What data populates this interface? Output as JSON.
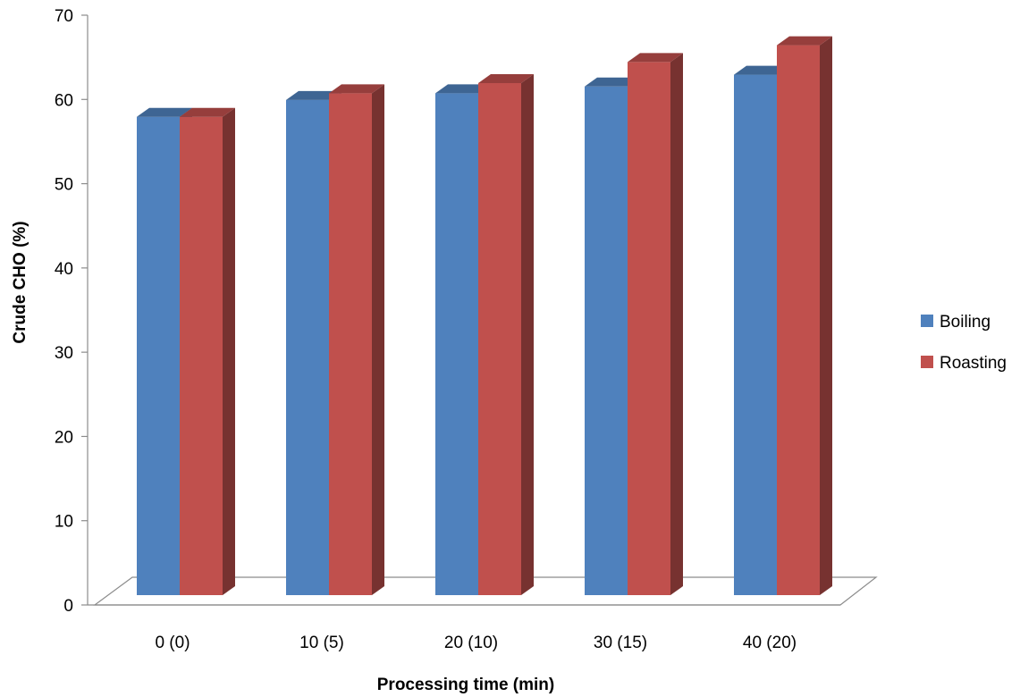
{
  "chart_data": {
    "type": "bar",
    "title": "",
    "xlabel": "Processing time (min)",
    "ylabel": "Crude CHO (%)",
    "categories": [
      "0 (0)",
      "10 (5)",
      "20 (10)",
      "30 (15)",
      "40 (20)"
    ],
    "series": [
      {
        "name": "Boiling",
        "values": [
          59,
          61,
          61.8,
          62.6,
          64
        ],
        "color": "#4f81bd"
      },
      {
        "name": "Roasting",
        "values": [
          59,
          61.8,
          63,
          65.5,
          67.5
        ],
        "color": "#c0504d"
      }
    ],
    "ylim": [
      0,
      70
    ],
    "yticks": [
      0,
      10,
      20,
      30,
      40,
      50,
      60,
      70
    ],
    "legend_position": "right",
    "grid": false,
    "style": "3d-column"
  }
}
